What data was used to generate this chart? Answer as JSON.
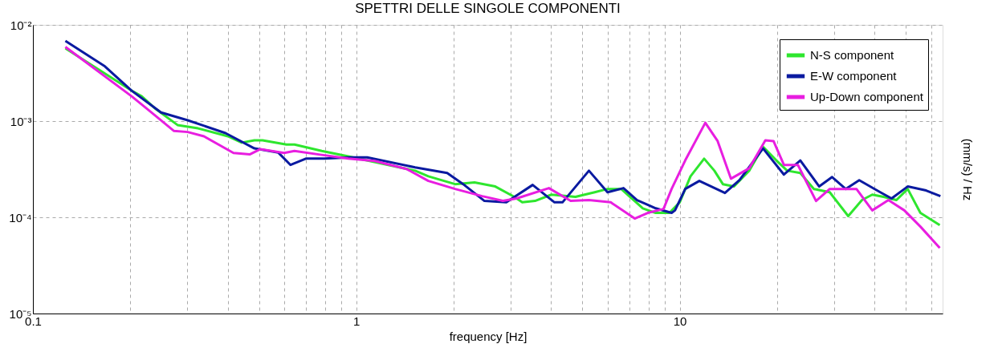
{
  "chart_data": {
    "type": "line",
    "title": "SPETTRI DELLE SINGOLE COMPONENTI",
    "xlabel": "frequency [Hz]",
    "ylabel": "(mm/s) / Hz",
    "log": "xy",
    "grid": true,
    "legend": "top right",
    "xlim": [
      0.1,
      65
    ],
    "ylim": [
      1e-05,
      0.01
    ],
    "xticks": [
      0.1,
      {
        "value": 0.2,
        "label": null
      },
      {
        "value": 0.3,
        "label": null
      },
      {
        "value": 0.4,
        "label": null
      },
      {
        "value": 0.5,
        "label": null
      },
      {
        "value": 0.6,
        "label": null
      },
      {
        "value": 0.7,
        "label": null
      },
      {
        "value": 0.8,
        "label": null
      },
      {
        "value": 0.9,
        "label": null
      },
      1,
      {
        "value": 2,
        "label": null
      },
      {
        "value": 3,
        "label": null
      },
      {
        "value": 4,
        "label": null
      },
      {
        "value": 5,
        "label": null
      },
      {
        "value": 6,
        "label": null
      },
      {
        "value": 7,
        "label": null
      },
      {
        "value": 8,
        "label": null
      },
      {
        "value": 9,
        "label": null
      },
      10,
      {
        "value": 20,
        "label": null
      },
      {
        "value": 30,
        "label": null
      },
      {
        "value": 40,
        "label": null
      },
      {
        "value": 50,
        "label": null
      },
      {
        "value": 60,
        "label": null
      }
    ],
    "yticks": [
      {
        "value": 1e-05,
        "label": "10⁻⁵"
      },
      {
        "value": 0.0001,
        "label": "10⁻⁴"
      },
      {
        "value": 0.001,
        "label": "10⁻³"
      },
      {
        "value": 0.01,
        "label": "10⁻²"
      }
    ],
    "series": [
      {
        "name": "N-S component",
        "color": "#2ee62e",
        "x": [
          0.126,
          0.202,
          0.217,
          0.24,
          0.28,
          0.324,
          0.401,
          0.442,
          0.484,
          0.513,
          0.608,
          0.644,
          0.782,
          0.944,
          1.14,
          1.52,
          1.67,
          2.02,
          2.32,
          2.69,
          3.08,
          3.26,
          3.57,
          4.01,
          4.76,
          5.46,
          5.98,
          6.59,
          7.69,
          8.43,
          9.29,
          10.0,
          10.8,
          11.9,
          12.8,
          13.6,
          14.7,
          16.4,
          18.1,
          19.9,
          21.5,
          23.6,
          26.0,
          29.1,
          33.2,
          36.6,
          39.4,
          42.7,
          46.8,
          50.7,
          55.5,
          63.7
        ],
        "values": [
          0.0057,
          0.00207,
          0.00181,
          0.00133,
          0.00091,
          0.00084,
          0.000695,
          0.000597,
          0.00063,
          0.00063,
          0.00057,
          0.00057,
          0.00049,
          0.00043,
          null,
          0.000305,
          0.000267,
          0.000221,
          0.00023,
          0.000209,
          0.000163,
          0.000143,
          0.000148,
          0.000172,
          0.000163,
          0.000182,
          0.000197,
          0.000197,
          0.000124,
          0.000111,
          0.000111,
          0.000143,
          0.000267,
          0.000407,
          0.000305,
          0.000221,
          0.000209,
          0.000305,
          0.00054,
          0.00039,
          0.000305,
          0.000289,
          0.000197,
          0.000182,
          0.000103,
          0.000151,
          0.000172,
          0.000163,
          0.000151,
          0.000197,
          0.000111,
          8.3e-05
        ]
      },
      {
        "name": "E-W component",
        "color": "#0a1aa0",
        "x": [
          0.126,
          0.167,
          0.202,
          0.249,
          0.301,
          0.394,
          0.484,
          0.574,
          0.626,
          0.698,
          0.796,
          0.961,
          1.08,
          1.52,
          1.91,
          2.14,
          2.49,
          2.91,
          3.51,
          4.1,
          4.34,
          5.24,
          5.98,
          6.7,
          7.38,
          8.43,
          9.44,
          9.67,
          10.4,
          11.5,
          13.8,
          15.3,
          18.1,
          21.0,
          23.6,
          27.0,
          29.6,
          32.6,
          35.9,
          41.7,
          45.2,
          50.7,
          57.8,
          64.0
        ],
        "values": [
          0.0068,
          0.0037,
          0.00207,
          0.00123,
          0.00102,
          0.00075,
          0.00052,
          0.00047,
          0.00035,
          0.000407,
          0.000407,
          0.00042,
          0.00042,
          0.00033,
          0.000289,
          0.000221,
          0.000148,
          0.000143,
          0.000217,
          0.000143,
          0.000143,
          0.000305,
          0.000182,
          0.000201,
          0.000151,
          0.000124,
          0.000111,
          0.000118,
          0.000197,
          0.000239,
          0.000179,
          0.000243,
          0.00052,
          0.000278,
          0.00039,
          0.000209,
          0.000262,
          0.000197,
          0.000243,
          0.000182,
          0.000157,
          0.000209,
          0.00019,
          0.000166
        ]
      },
      {
        "name": "Up-Down component",
        "color": "#e81ee0",
        "x": [
          0.126,
          0.202,
          0.226,
          0.273,
          0.301,
          0.338,
          0.417,
          0.468,
          0.504,
          0.598,
          0.644,
          0.765,
          0.944,
          1.14,
          1.43,
          1.67,
          2.02,
          2.45,
          2.84,
          3.13,
          3.94,
          4.6,
          5.24,
          6.12,
          7.26,
          7.96,
          8.91,
          9.44,
          10.4,
          12.0,
          13.1,
          14.4,
          16.4,
          18.4,
          19.5,
          21.0,
          23.2,
          26.4,
          29.1,
          35.2,
          39.4,
          44.2,
          49.5,
          55.5,
          63.7
        ],
        "values": [
          0.0059,
          0.00181,
          0.00133,
          0.00079,
          0.00077,
          0.000695,
          0.000466,
          0.00045,
          0.00051,
          0.000466,
          0.00049,
          0.00045,
          0.000407,
          0.000385,
          0.000318,
          0.000239,
          0.000197,
          0.000166,
          0.000148,
          0.000157,
          0.000201,
          0.000148,
          0.000151,
          0.000143,
          9.7e-05,
          0.000111,
          0.000122,
          0.000197,
          0.00039,
          0.00096,
          0.00062,
          0.000252,
          0.000323,
          0.00063,
          0.00062,
          0.00035,
          0.00035,
          0.000148,
          0.000197,
          0.000197,
          0.000118,
          0.000151,
          0.000118,
          8e-05,
          4.8e-05
        ]
      }
    ]
  }
}
